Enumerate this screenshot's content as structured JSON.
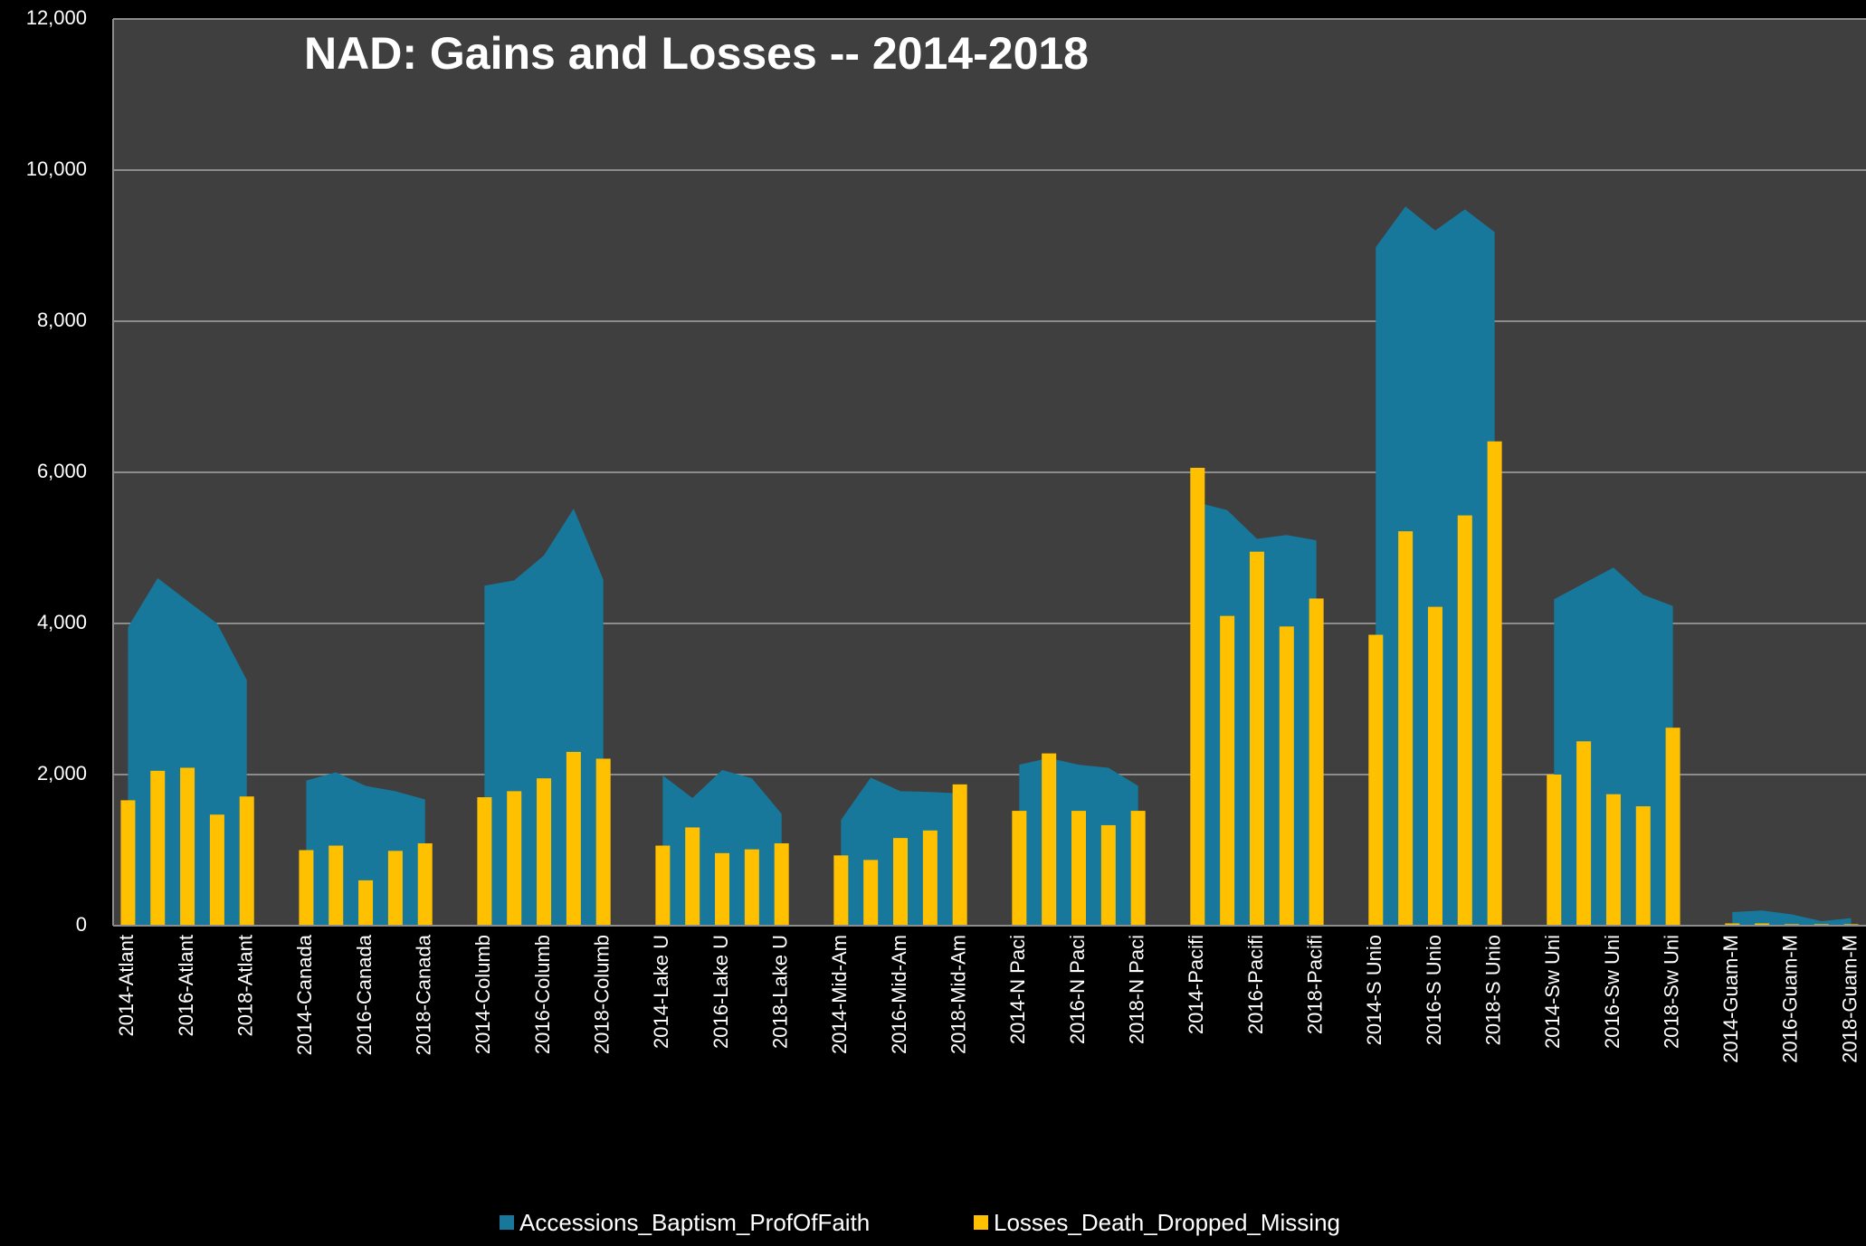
{
  "chart_data": {
    "type": "bar_area",
    "title": "NAD:  Gains and Losses -- 2014-2018",
    "categories": [
      "2014-Atlant",
      null,
      "2016-Atlant",
      null,
      "2018-Atlant",
      null,
      "2014-Canada",
      null,
      "2016-Canada",
      null,
      "2018-Canada",
      null,
      "2014-Columb",
      null,
      "2016-Columb",
      null,
      "2018-Columb",
      null,
      "2014-Lake U",
      null,
      "2016-Lake U",
      null,
      "2018-Lake U",
      null,
      "2014-Mid-Am",
      null,
      "2016-Mid-Am",
      null,
      "2018-Mid-Am",
      null,
      "2014-N Paci",
      null,
      "2016-N Paci",
      null,
      "2018-N Paci",
      null,
      "2014-Pacifi",
      null,
      "2016-Pacifi",
      null,
      "2018-Pacifi",
      null,
      "2014-S Unio",
      null,
      "2016-S Unio",
      null,
      "2018-S Unio",
      null,
      "2014-Sw Uni",
      null,
      "2016-Sw Uni",
      null,
      "2018-Sw Uni",
      null,
      "2014-Guam-M",
      null,
      "2016-Guam-M",
      null,
      "2018-Guam-M"
    ],
    "series": [
      {
        "name": "Accessions_Baptism_ProfOfFaith",
        "kind": "area",
        "color": "#17789c",
        "values": [
          3950,
          4600,
          4300,
          4000,
          3250,
          null,
          1920,
          2030,
          1850,
          1780,
          1670,
          null,
          4500,
          4570,
          4900,
          5520,
          4580,
          null,
          1990,
          1690,
          2060,
          1950,
          1480,
          null,
          1400,
          1960,
          1780,
          1770,
          1750,
          null,
          2130,
          2220,
          2130,
          2090,
          1850,
          null,
          5600,
          5500,
          5120,
          5170,
          5100,
          null,
          8980,
          9520,
          9200,
          9480,
          9180,
          null,
          4320,
          4530,
          4740,
          4380,
          4230,
          null,
          180,
          200,
          150,
          60,
          100
        ]
      },
      {
        "name": "Losses_Death_Dropped_Missing",
        "kind": "bar",
        "color": "#ffc000",
        "values": [
          1660,
          2050,
          2090,
          1470,
          1710,
          null,
          1000,
          1060,
          600,
          990,
          1090,
          null,
          1700,
          1780,
          1950,
          2300,
          2210,
          null,
          1060,
          1300,
          960,
          1010,
          1090,
          null,
          930,
          870,
          1160,
          1260,
          1870,
          null,
          1520,
          2280,
          1520,
          1330,
          1520,
          null,
          6060,
          4100,
          4950,
          3960,
          4330,
          null,
          3850,
          5220,
          4220,
          5430,
          6410,
          null,
          2000,
          2440,
          1740,
          1580,
          2620,
          null,
          30,
          30,
          20,
          20,
          20
        ]
      }
    ],
    "ylim": [
      0,
      12000
    ],
    "yticks": [
      0,
      {
        "value": 2000,
        "label": "2,000"
      },
      {
        "value": 4000,
        "label": "4,000"
      },
      {
        "value": 6000,
        "label": "6,000"
      },
      {
        "value": 8000,
        "label": "8,000"
      },
      {
        "value": 10000,
        "label": "10,000"
      },
      {
        "value": 12000,
        "label": "12,000"
      }
    ],
    "grid": true,
    "legend": "bottom"
  }
}
